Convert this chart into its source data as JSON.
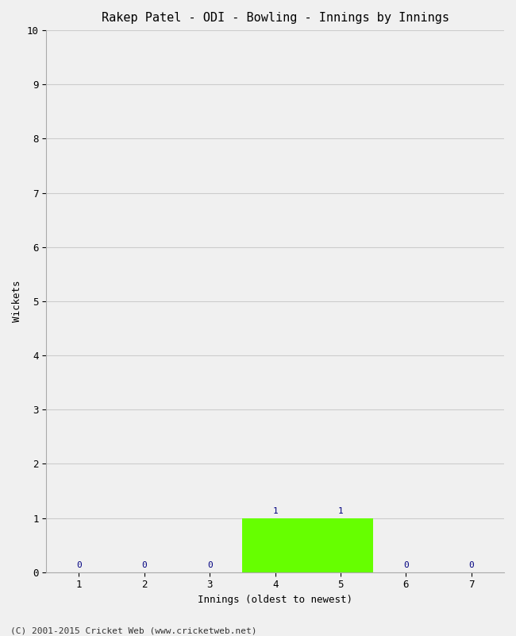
{
  "title": "Rakep Patel - ODI - Bowling - Innings by Innings",
  "xlabel": "Innings (oldest to newest)",
  "ylabel": "Wickets",
  "innings": [
    1,
    2,
    3,
    4,
    5,
    6,
    7
  ],
  "wickets": [
    0,
    0,
    0,
    1,
    1,
    0,
    0
  ],
  "bar_color": "#66ff00",
  "ylim": [
    0,
    10
  ],
  "yticks": [
    0,
    1,
    2,
    3,
    4,
    5,
    6,
    7,
    8,
    9,
    10
  ],
  "xticks": [
    1,
    2,
    3,
    4,
    5,
    6,
    7
  ],
  "label_color": "#000080",
  "grid_color": "#cccccc",
  "bg_color": "#f0f0f0",
  "footer": "(C) 2001-2015 Cricket Web (www.cricketweb.net)",
  "title_fontsize": 11,
  "axis_label_fontsize": 9,
  "tick_fontsize": 9,
  "label_fontsize": 8,
  "bar_width": 1.0
}
